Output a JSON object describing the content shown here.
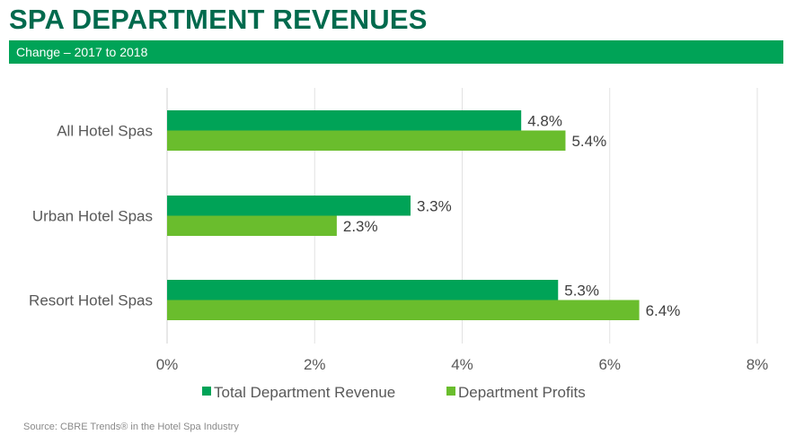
{
  "header": {
    "title": "SPA DEPARTMENT REVENUES",
    "subtitle": "Change – 2017 to 2018"
  },
  "colors": {
    "title": "#006A4D",
    "banner": "#00A357",
    "series_revenue": "#00A357",
    "series_profits": "#6ABD2D"
  },
  "chart_data": {
    "type": "bar",
    "orientation": "horizontal",
    "title": "SPA DEPARTMENT REVENUES",
    "subtitle": "Change – 2017 to 2018",
    "categories": [
      "All Hotel Spas",
      "Urban Hotel Spas",
      "Resort Hotel Spas"
    ],
    "series": [
      {
        "name": "Total Department Revenue",
        "color": "#00A357",
        "values": [
          4.8,
          3.3,
          5.3
        ],
        "labels": [
          "4.8%",
          "3.3%",
          "5.3%"
        ]
      },
      {
        "name": "Department Profits",
        "color": "#6ABD2D",
        "values": [
          5.4,
          2.3,
          6.4
        ],
        "labels": [
          "5.4%",
          "2.3%",
          "6.4%"
        ]
      }
    ],
    "xlim": [
      0,
      8
    ],
    "xticks": [
      0,
      2,
      4,
      6,
      8
    ],
    "xtick_labels": [
      "0%",
      "2%",
      "4%",
      "6%",
      "8%"
    ],
    "xlabel": "",
    "ylabel": "",
    "grid": "vertical",
    "legend": "bottom"
  },
  "footer": {
    "source": "Source: CBRE Trends® in the Hotel Spa Industry"
  }
}
